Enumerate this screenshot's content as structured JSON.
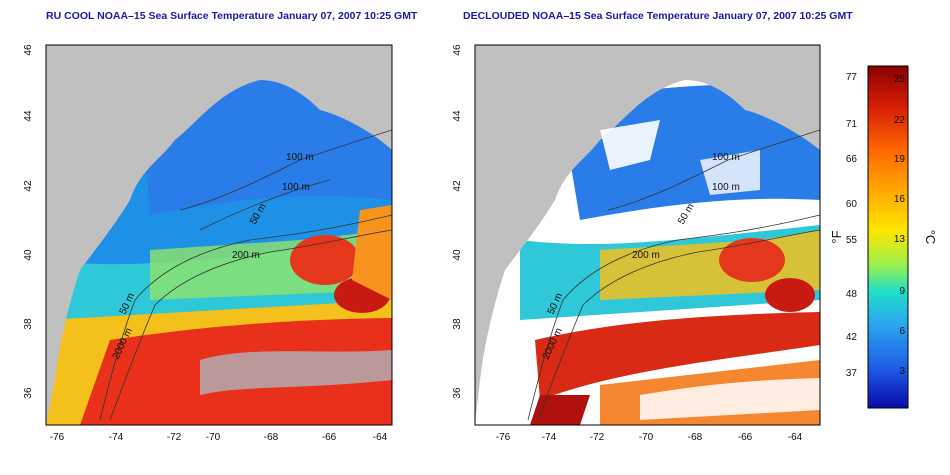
{
  "maps": [
    {
      "title": "RU COOL NOAA–15 Sea Surface Temperature January 07, 2007 10:25 GMT",
      "contour_labels": [
        "100 m",
        "100 m",
        "50 m",
        "200 m",
        "50 m",
        "2000 m"
      ],
      "x_ticks": [
        "-76",
        "-74",
        "-72",
        "-70",
        "-68",
        "-66",
        "-64"
      ],
      "y_ticks": [
        "46",
        "44",
        "42",
        "40",
        "38",
        "36"
      ]
    },
    {
      "title": "DECLOUDED NOAA–15 Sea Surface Temperature January 07, 2007 10:25 GMT",
      "contour_labels": [
        "100 m",
        "100 m",
        "50 m",
        "200 m",
        "50 m",
        "2000 m"
      ],
      "x_ticks": [
        "-76",
        "-74",
        "-72",
        "-70",
        "-68",
        "-66",
        "-64"
      ],
      "y_ticks": [
        "46",
        "44",
        "42",
        "40",
        "38",
        "36"
      ]
    }
  ],
  "colorbar": {
    "fahrenheit_ticks": [
      "77",
      "71",
      "66",
      "60",
      "55",
      "48",
      "42",
      "37"
    ],
    "celsius_ticks": [
      "25",
      "22",
      "19",
      "16",
      "13",
      "9",
      "6",
      "3"
    ],
    "f_unit": "°F",
    "c_unit": "°C",
    "colors": [
      "#8b0000",
      "#d81e05",
      "#ff6a00",
      "#ffb000",
      "#ffe600",
      "#9cf04a",
      "#1ee0c8",
      "#2ba3f0",
      "#1f5fe6",
      "#0a0aa8"
    ]
  },
  "colors": {
    "land": "#c0c0c0",
    "cloud": "#ffffff",
    "title": "#1a1aa6"
  }
}
